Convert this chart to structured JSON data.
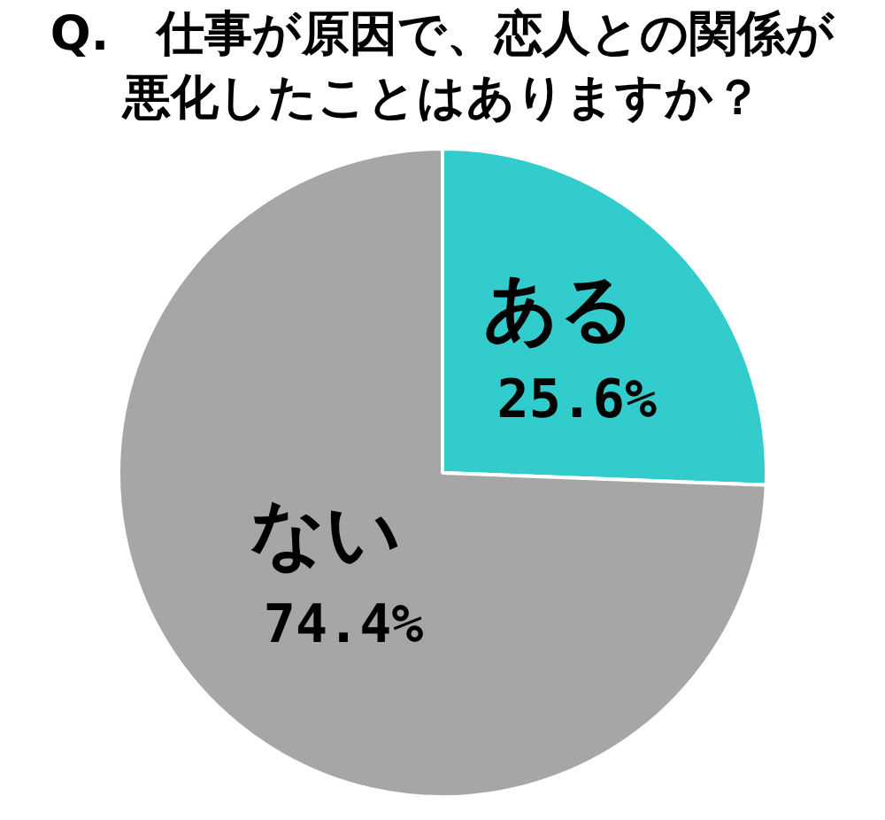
{
  "chart_data": {
    "type": "pie",
    "title": "Q.　仕事が原因で、恋人との関係が悪化したことはありますか？",
    "categories": [
      "ある",
      "ない"
    ],
    "values": [
      25.6,
      74.4
    ],
    "colors": [
      "#33cccc",
      "#a6a6a6"
    ],
    "value_labels": [
      "25.6%",
      "74.4%"
    ]
  }
}
